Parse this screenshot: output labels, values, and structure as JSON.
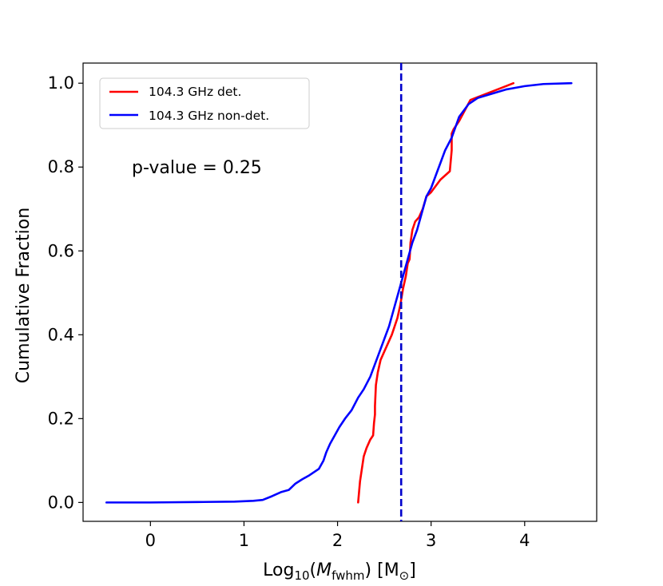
{
  "chart_data": {
    "type": "line",
    "xlabel": {
      "prefix": "Log",
      "sub": "10",
      "open": "(",
      "var": "M",
      "varsub": "fwhm",
      "close": ") [M",
      "unitsub": "⊙",
      "end": "]"
    },
    "ylabel": "Cumulative Fraction",
    "xlim": [
      -0.72,
      4.77
    ],
    "ylim": [
      -0.045,
      1.048
    ],
    "xticks": [
      0,
      1,
      2,
      3,
      4
    ],
    "xtick_labels": [
      "0",
      "1",
      "2",
      "3",
      "4"
    ],
    "yticks": [
      0.0,
      0.2,
      0.4,
      0.6,
      0.8,
      1.0
    ],
    "ytick_labels": [
      "0.0",
      "0.2",
      "0.4",
      "0.6",
      "0.8",
      "1.0"
    ],
    "grid": false,
    "legend_position": "top-left",
    "annotation": "p-value = 0.25",
    "vline": {
      "x": 2.68,
      "color": "#0000cc",
      "style": "dashed"
    },
    "series": [
      {
        "name": "104.3 GHz det.",
        "color": "#ff0000",
        "x": [
          2.22,
          2.24,
          2.26,
          2.28,
          2.31,
          2.35,
          2.38,
          2.39,
          2.4,
          2.4,
          2.41,
          2.43,
          2.46,
          2.5,
          2.54,
          2.58,
          2.61,
          2.64,
          2.67,
          2.7,
          2.73,
          2.75,
          2.77,
          2.78,
          2.8,
          2.83,
          2.87,
          2.91,
          2.95,
          3.0,
          3.1,
          3.2,
          3.22,
          3.22,
          3.24,
          3.3,
          3.42,
          3.88
        ],
        "y": [
          0.0,
          0.05,
          0.08,
          0.11,
          0.13,
          0.15,
          0.16,
          0.19,
          0.21,
          0.23,
          0.28,
          0.31,
          0.34,
          0.36,
          0.38,
          0.4,
          0.42,
          0.44,
          0.47,
          0.51,
          0.54,
          0.57,
          0.58,
          0.62,
          0.65,
          0.67,
          0.68,
          0.7,
          0.73,
          0.74,
          0.77,
          0.79,
          0.84,
          0.88,
          0.89,
          0.91,
          0.96,
          1.0
        ]
      },
      {
        "name": "104.3 GHz non-det.",
        "color": "#0000ff",
        "x": [
          -0.47,
          0.0,
          0.5,
          0.9,
          1.0,
          1.1,
          1.2,
          1.3,
          1.4,
          1.48,
          1.55,
          1.62,
          1.7,
          1.8,
          1.85,
          1.88,
          1.92,
          1.97,
          2.02,
          2.08,
          2.15,
          2.22,
          2.28,
          2.35,
          2.4,
          2.45,
          2.5,
          2.55,
          2.6,
          2.65,
          2.7,
          2.75,
          2.8,
          2.85,
          2.9,
          2.95,
          3.0,
          3.05,
          3.1,
          3.15,
          3.22,
          3.3,
          3.4,
          3.5,
          3.65,
          3.8,
          4.0,
          4.2,
          4.5
        ],
        "y": [
          0.0,
          0.0,
          0.001,
          0.002,
          0.003,
          0.004,
          0.006,
          0.015,
          0.025,
          0.03,
          0.045,
          0.055,
          0.065,
          0.08,
          0.1,
          0.12,
          0.14,
          0.16,
          0.18,
          0.2,
          0.22,
          0.25,
          0.27,
          0.3,
          0.33,
          0.36,
          0.39,
          0.42,
          0.46,
          0.5,
          0.54,
          0.58,
          0.62,
          0.65,
          0.69,
          0.73,
          0.75,
          0.78,
          0.81,
          0.84,
          0.87,
          0.92,
          0.95,
          0.965,
          0.975,
          0.985,
          0.993,
          0.998,
          1.0
        ]
      }
    ]
  }
}
